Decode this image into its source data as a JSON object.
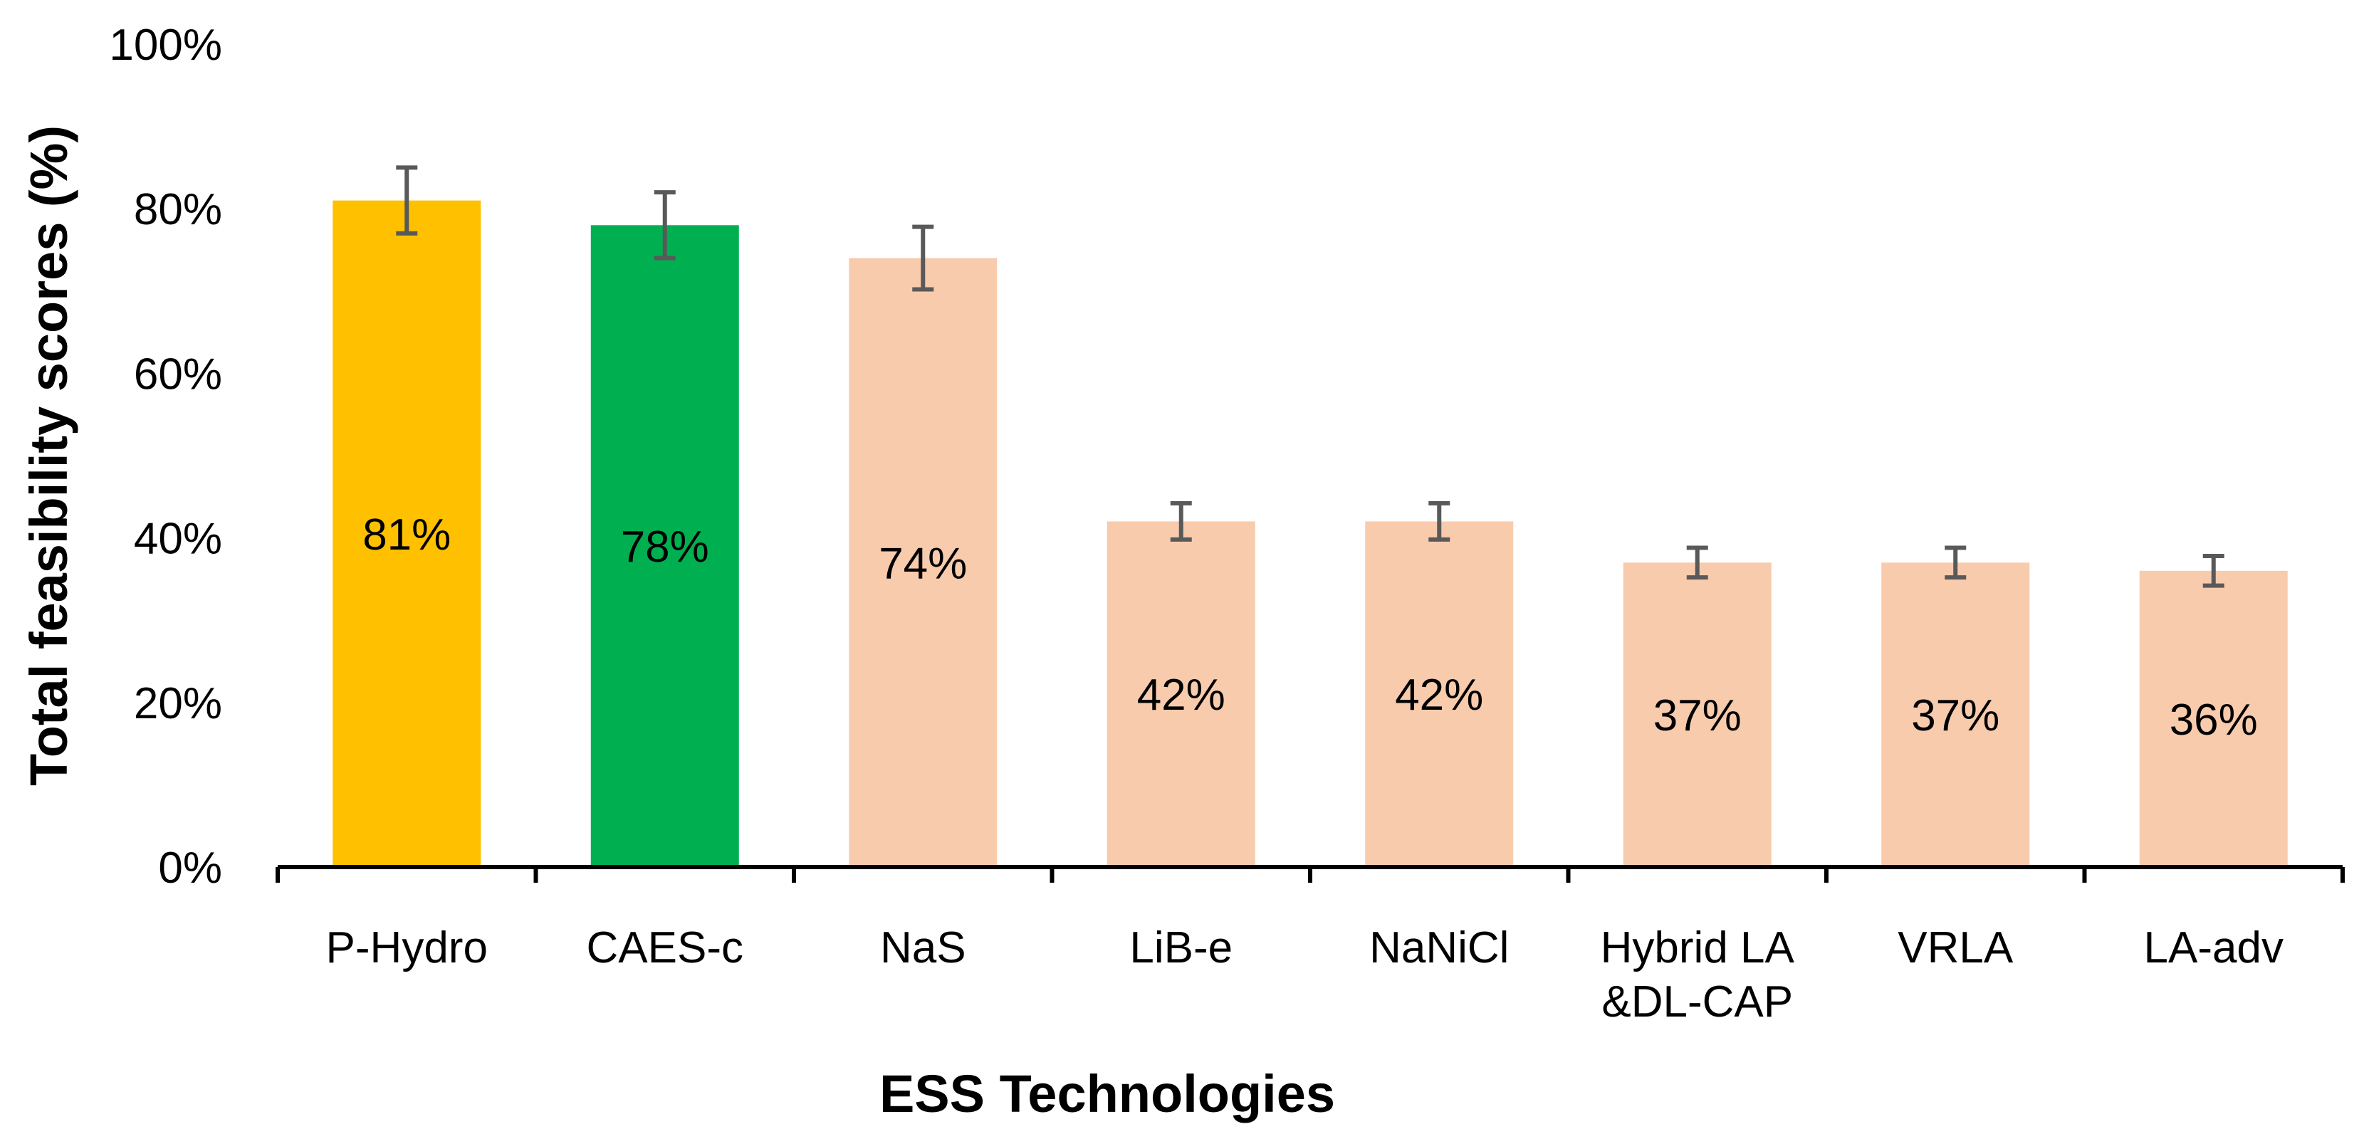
{
  "chart_data": {
    "type": "bar",
    "title": "",
    "xlabel": "ESS Technologies",
    "ylabel": "Total feasibility scores (%)",
    "ylim": [
      0,
      100
    ],
    "yticks": [
      "0%",
      "20%",
      "40%",
      "60%",
      "80%",
      "100%"
    ],
    "categories": [
      [
        "P-Hydro"
      ],
      [
        "CAES-c"
      ],
      [
        "NaS"
      ],
      [
        "LiB-e"
      ],
      [
        "NaNiCl"
      ],
      [
        "Hybrid LA",
        "&DL-CAP"
      ],
      [
        "VRLA"
      ],
      [
        "LA-adv"
      ]
    ],
    "values": [
      81,
      78,
      74,
      42,
      42,
      37,
      37,
      36
    ],
    "error": [
      4,
      4,
      3.8,
      2.2,
      2.2,
      1.8,
      1.8,
      1.8
    ],
    "data_labels": [
      "81%",
      "78%",
      "74%",
      "42%",
      "42%",
      "37%",
      "37%",
      "36%"
    ],
    "colors": [
      "#FFC000",
      "#00B050",
      "#F8CBAD",
      "#F8CBAD",
      "#F8CBAD",
      "#F8CBAD",
      "#F8CBAD",
      "#F8CBAD"
    ],
    "error_bar_color": "#595959",
    "axis_color": "#000000",
    "grid": false,
    "legend": "none"
  }
}
